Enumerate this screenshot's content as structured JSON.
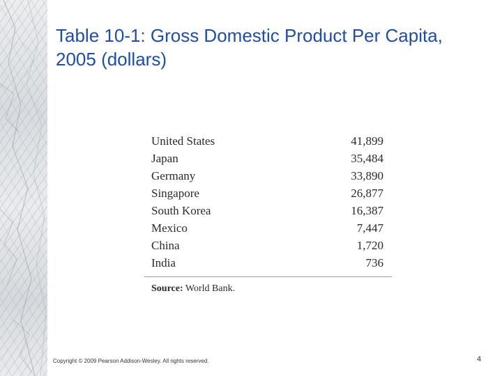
{
  "slide": {
    "title": "Table 10-1: Gross Domestic Product Per Capita, 2005 (dollars)",
    "footer": "Copyright © 2009 Pearson Addison-Wesley. All rights reserved.",
    "page_number": "4"
  },
  "table": {
    "rows": [
      {
        "country": "United States",
        "value": "41,899"
      },
      {
        "country": "Japan",
        "value": "35,484"
      },
      {
        "country": "Germany",
        "value": "33,890"
      },
      {
        "country": "Singapore",
        "value": "26,877"
      },
      {
        "country": "South Korea",
        "value": "16,387"
      },
      {
        "country": "Mexico",
        "value": "7,447"
      },
      {
        "country": "China",
        "value": "1,720"
      },
      {
        "country": "India",
        "value": "736"
      }
    ],
    "source_label": "Source:",
    "source_text": "World Bank."
  }
}
